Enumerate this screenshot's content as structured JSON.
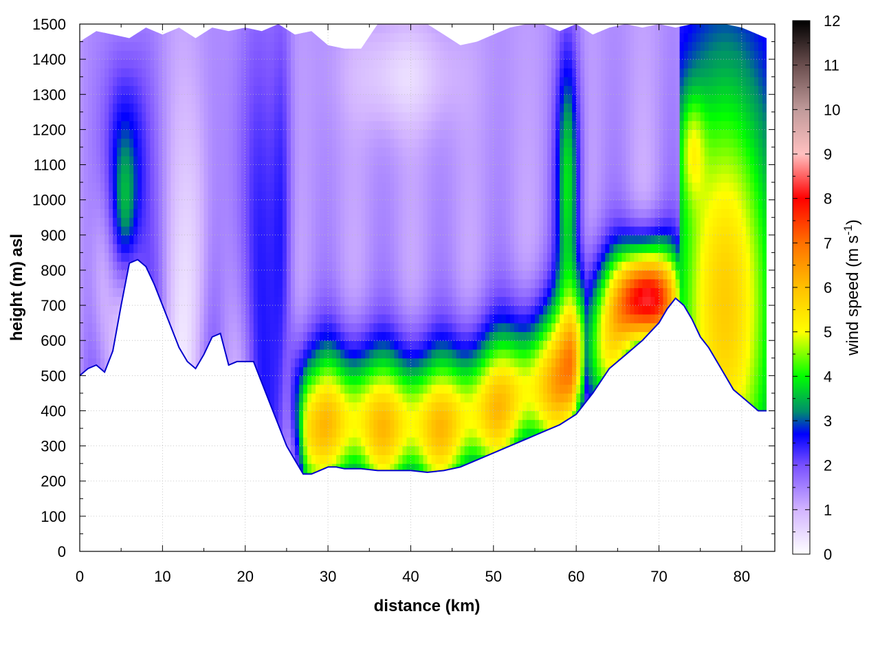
{
  "chart_data": {
    "type": "heatmap",
    "title": "",
    "xlabel": "distance (km)",
    "ylabel": "height (m) asl",
    "colorbar_label_main": "wind speed (m s",
    "colorbar_label_sup": "-1",
    "colorbar_label_end": ")",
    "xlim": [
      0,
      84
    ],
    "ylim": [
      0,
      1500
    ],
    "xticks": [
      "0",
      "10",
      "20",
      "30",
      "40",
      "50",
      "60",
      "70",
      "80"
    ],
    "yticks": [
      "0",
      "100",
      "200",
      "300",
      "400",
      "500",
      "600",
      "700",
      "800",
      "900",
      "1000",
      "1100",
      "1200",
      "1300",
      "1400",
      "1500"
    ],
    "colorbar_ticks": [
      "0",
      "1",
      "2",
      "3",
      "4",
      "5",
      "6",
      "7",
      "8",
      "9",
      "10",
      "11",
      "12"
    ],
    "colorbar_range": [
      0,
      12
    ],
    "grid": true,
    "colormap": [
      {
        "value": 0,
        "color": "#ffffff"
      },
      {
        "value": 1,
        "color": "#d2b4ff"
      },
      {
        "value": 2,
        "color": "#7850ff"
      },
      {
        "value": 2.7,
        "color": "#0000ff"
      },
      {
        "value": 3.2,
        "color": "#008c6e"
      },
      {
        "value": 4,
        "color": "#00ff00"
      },
      {
        "value": 5,
        "color": "#ffff00"
      },
      {
        "value": 6,
        "color": "#ffc000"
      },
      {
        "value": 7,
        "color": "#ff7000"
      },
      {
        "value": 8,
        "color": "#ff0000"
      },
      {
        "value": 9,
        "color": "#ffc0c0"
      },
      {
        "value": 10,
        "color": "#c09a9a"
      },
      {
        "value": 11,
        "color": "#6a4e4e"
      },
      {
        "value": 12,
        "color": "#000000"
      }
    ],
    "terrain": {
      "x": [
        0,
        1,
        2,
        3,
        4,
        5,
        6,
        7,
        8,
        9,
        10,
        11,
        12,
        13,
        14,
        15,
        16,
        17,
        18,
        19,
        20,
        21,
        22,
        23,
        24,
        25,
        26,
        27,
        28,
        29,
        30,
        31,
        32,
        34,
        36,
        38,
        40,
        42,
        44,
        46,
        48,
        50,
        52,
        54,
        56,
        58,
        60,
        62,
        64,
        66,
        68,
        70,
        71,
        72,
        73,
        74,
        75,
        76,
        77,
        78,
        79,
        80,
        81,
        82,
        83
      ],
      "y": [
        500,
        520,
        530,
        510,
        570,
        700,
        820,
        830,
        810,
        760,
        700,
        640,
        580,
        540,
        520,
        560,
        610,
        620,
        530,
        540,
        540,
        540,
        480,
        420,
        360,
        300,
        260,
        220,
        220,
        230,
        240,
        240,
        235,
        235,
        230,
        230,
        230,
        225,
        230,
        240,
        260,
        280,
        300,
        320,
        340,
        360,
        390,
        450,
        520,
        560,
        600,
        650,
        690,
        720,
        700,
        660,
        610,
        580,
        540,
        500,
        460,
        440,
        420,
        400,
        400
      ]
    },
    "top_boundary": {
      "x": [
        0,
        2,
        4,
        6,
        8,
        10,
        12,
        14,
        16,
        18,
        20,
        22,
        24,
        26,
        28,
        30,
        32,
        34,
        36,
        38,
        40,
        42,
        44,
        46,
        48,
        50,
        52,
        54,
        56,
        58,
        60,
        62,
        64,
        66,
        68,
        70,
        72,
        74,
        76,
        78,
        80,
        82,
        83
      ],
      "y": [
        1450,
        1480,
        1470,
        1460,
        1490,
        1470,
        1490,
        1460,
        1490,
        1480,
        1490,
        1480,
        1500,
        1470,
        1480,
        1440,
        1430,
        1430,
        1500,
        1500,
        1500,
        1500,
        1470,
        1440,
        1450,
        1470,
        1490,
        1500,
        1500,
        1480,
        1500,
        1470,
        1490,
        1500,
        1490,
        1500,
        1490,
        1500,
        1500,
        1500,
        1490,
        1470,
        1460
      ]
    },
    "annotations": []
  }
}
